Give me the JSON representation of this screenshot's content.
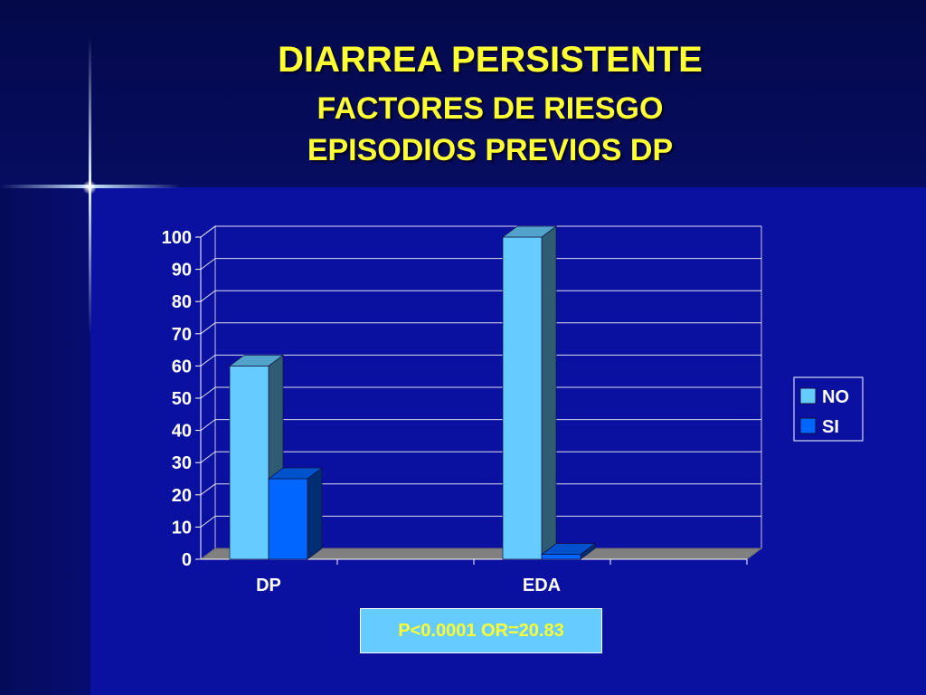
{
  "slide": {
    "title": "DIARREA PERSISTENTE",
    "subtitle1": "FACTORES DE RIESGO",
    "subtitle2": "EPISODIOS PREVIOS DP",
    "stats": "P<0.0001 OR=20.83"
  },
  "colors": {
    "title": "#ffff33",
    "series_no": "#66ccff",
    "series_si": "#0066ff"
  },
  "chart_data": {
    "type": "bar",
    "categories": [
      "DP",
      "EDA"
    ],
    "series": [
      {
        "name": "NO",
        "values": [
          60,
          100
        ],
        "color": "#66ccff"
      },
      {
        "name": "SI",
        "values": [
          25,
          1.5
        ],
        "color": "#0066ff"
      }
    ],
    "ylim": [
      0,
      100
    ],
    "yticks": [
      0,
      10,
      20,
      30,
      40,
      50,
      60,
      70,
      80,
      90,
      100
    ],
    "grid": true,
    "legend": "right",
    "three_d": true
  }
}
